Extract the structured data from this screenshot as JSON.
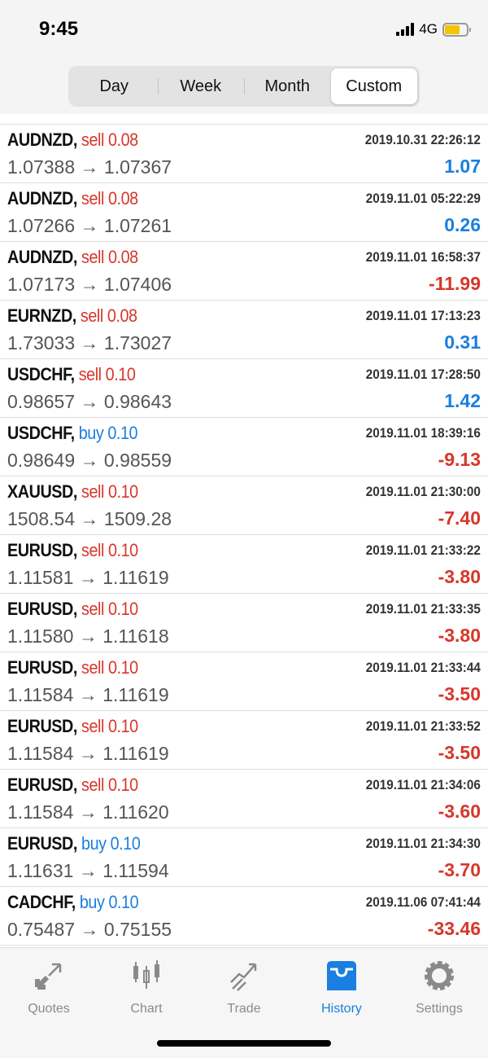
{
  "status": {
    "time": "9:45",
    "network": "4G"
  },
  "segments": [
    {
      "label": "Day"
    },
    {
      "label": "Week"
    },
    {
      "label": "Month"
    },
    {
      "label": "Custom",
      "selected": true
    }
  ],
  "trades": [
    {
      "symbol": "AUDNZD,",
      "side": "sell",
      "volume": "sell 0.08",
      "time": "2019.10.31 22:26:12",
      "prices": "1.07388 → 1.07367",
      "profit": "1.07"
    },
    {
      "symbol": "AUDNZD,",
      "side": "sell",
      "volume": "sell 0.08",
      "time": "2019.11.01 05:22:29",
      "prices": "1.07266 → 1.07261",
      "profit": "0.26"
    },
    {
      "symbol": "AUDNZD,",
      "side": "sell",
      "volume": "sell 0.08",
      "time": "2019.11.01 16:58:37",
      "prices": "1.07173 → 1.07406",
      "profit": "-11.99"
    },
    {
      "symbol": "EURNZD,",
      "side": "sell",
      "volume": "sell 0.08",
      "time": "2019.11.01 17:13:23",
      "prices": "1.73033 → 1.73027",
      "profit": "0.31"
    },
    {
      "symbol": "USDCHF,",
      "side": "sell",
      "volume": "sell 0.10",
      "time": "2019.11.01 17:28:50",
      "prices": "0.98657 → 0.98643",
      "profit": "1.42"
    },
    {
      "symbol": "USDCHF,",
      "side": "buy",
      "volume": "buy 0.10",
      "time": "2019.11.01 18:39:16",
      "prices": "0.98649 → 0.98559",
      "profit": "-9.13"
    },
    {
      "symbol": "XAUUSD,",
      "side": "sell",
      "volume": "sell 0.10",
      "time": "2019.11.01 21:30:00",
      "prices": "1508.54 → 1509.28",
      "profit": "-7.40"
    },
    {
      "symbol": "EURUSD,",
      "side": "sell",
      "volume": "sell 0.10",
      "time": "2019.11.01 21:33:22",
      "prices": "1.11581 → 1.11619",
      "profit": "-3.80"
    },
    {
      "symbol": "EURUSD,",
      "side": "sell",
      "volume": "sell 0.10",
      "time": "2019.11.01 21:33:35",
      "prices": "1.11580 → 1.11618",
      "profit": "-3.80"
    },
    {
      "symbol": "EURUSD,",
      "side": "sell",
      "volume": "sell 0.10",
      "time": "2019.11.01 21:33:44",
      "prices": "1.11584 → 1.11619",
      "profit": "-3.50"
    },
    {
      "symbol": "EURUSD,",
      "side": "sell",
      "volume": "sell 0.10",
      "time": "2019.11.01 21:33:52",
      "prices": "1.11584 → 1.11619",
      "profit": "-3.50"
    },
    {
      "symbol": "EURUSD,",
      "side": "sell",
      "volume": "sell 0.10",
      "time": "2019.11.01 21:34:06",
      "prices": "1.11584 → 1.11620",
      "profit": "-3.60"
    },
    {
      "symbol": "EURUSD,",
      "side": "buy",
      "volume": "buy 0.10",
      "time": "2019.11.01 21:34:30",
      "prices": "1.11631 → 1.11594",
      "profit": "-3.70"
    },
    {
      "symbol": "CADCHF,",
      "side": "buy",
      "volume": "buy 0.10",
      "time": "2019.11.06 07:41:44",
      "prices": "0.75487 → 0.75155",
      "profit": "-33.46"
    }
  ],
  "tabs": [
    {
      "label": "Quotes",
      "icon": "quotes-icon"
    },
    {
      "label": "Chart",
      "icon": "chart-icon"
    },
    {
      "label": "Trade",
      "icon": "trade-icon"
    },
    {
      "label": "History",
      "icon": "history-icon",
      "active": true
    },
    {
      "label": "Settings",
      "icon": "gear-icon"
    }
  ],
  "colors": {
    "sell": "#d8362a",
    "buy": "#1a7fe0",
    "accent": "#1a7fe0"
  }
}
